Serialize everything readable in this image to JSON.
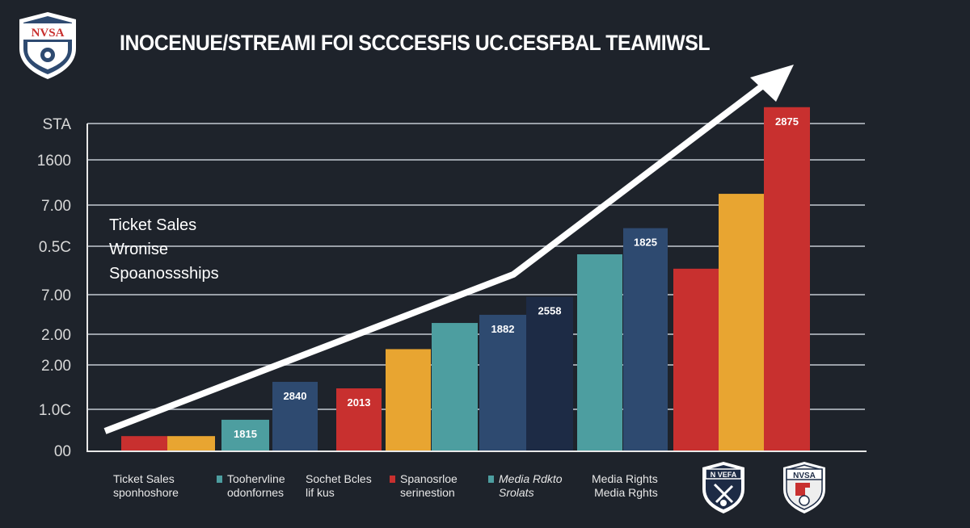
{
  "header": {
    "title": "INOCENUE/STREAMI FOI SCCCESFIS UC.CESFBAL TEAMIWSL",
    "logo_text": "NVSA"
  },
  "colors": {
    "background": "#1e232b",
    "red": "#c8302f",
    "yellow": "#e8a531",
    "teal": "#4d9ea0",
    "navy": "#2e4a70",
    "dark_navy": "#1d2b45",
    "trend_arrow": "#ffffff"
  },
  "chart_data": {
    "type": "bar",
    "title": "INOCENUE/STREAMI FOI SCCCESFIS UC.CESFBAL TEAMIWSL",
    "y_tick_labels": [
      "00",
      "1.0C",
      "2.00",
      "2.00",
      "7.00",
      "0.5C",
      "7.00",
      "1600",
      "STA"
    ],
    "grid": true,
    "value_note_unit": "fraction of axis height",
    "bars": [
      {
        "color": "red",
        "level": 0.044,
        "label": ""
      },
      {
        "color": "yellow",
        "level": 0.044,
        "label": ""
      },
      {
        "color": "teal",
        "level": 0.094,
        "label": "1815"
      },
      {
        "color": "navy",
        "level": 0.21,
        "label": "2840"
      },
      {
        "color": "red",
        "level": 0.19,
        "label": "2013"
      },
      {
        "color": "yellow",
        "level": 0.31,
        "label": ""
      },
      {
        "color": "teal",
        "level": 0.39,
        "label": ""
      },
      {
        "color": "navy",
        "level": 0.415,
        "label": "1882"
      },
      {
        "color": "dark_navy",
        "level": 0.47,
        "label": "2558"
      },
      {
        "color": "teal",
        "level": 0.6,
        "label": ""
      },
      {
        "color": "navy",
        "level": 0.68,
        "label": "1825"
      },
      {
        "color": "red",
        "level": 0.556,
        "label": ""
      },
      {
        "color": "yellow",
        "level": 0.785,
        "label": ""
      },
      {
        "color": "red",
        "level": 1.05,
        "label": "2875"
      }
    ],
    "trend": "upward arrow",
    "annotation_lines": [
      "Ticket Sales",
      "Wronise",
      "Spoanossships"
    ],
    "legend_placement": "bottom",
    "legend": [
      {
        "swatch": null,
        "lines": [
          "Ticket Sales",
          "sponhoshore"
        ]
      },
      {
        "swatch": "teal",
        "lines": [
          "Toohervline",
          "odonfornes"
        ]
      },
      {
        "swatch": null,
        "lines": [
          "Sochet Bcles",
          "lif kus"
        ]
      },
      {
        "swatch": "red",
        "lines": [
          "Spanosrloe",
          "serinestion"
        ]
      },
      {
        "swatch": "teal",
        "lines": [
          "Media Rdkto",
          "Srolats"
        ]
      },
      {
        "swatch": null,
        "lines": [
          "Media Rights",
          "Media Rghts"
        ]
      }
    ]
  },
  "footer_logos": [
    {
      "text": "N VEFA",
      "icon": "crossed-arrow-shield"
    },
    {
      "text": "NVSA",
      "icon": "soccer-shield"
    }
  ]
}
